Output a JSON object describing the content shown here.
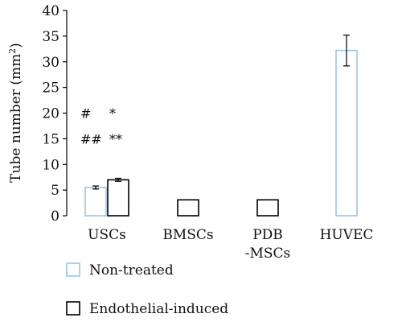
{
  "chart_data": {
    "type": "bar",
    "ylabel": "Tube number (mm",
    "ylabel_sup": "2",
    "ylabel_end": ")",
    "ylim": [
      0,
      40
    ],
    "yticks": [
      0,
      5,
      10,
      15,
      20,
      25,
      30,
      35,
      40
    ],
    "grid": false,
    "legend_position": "bottom-left",
    "categories": [
      {
        "lines": [
          "USCs"
        ]
      },
      {
        "lines": [
          "BMSCs"
        ]
      },
      {
        "lines": [
          "PDB",
          "-MSCs"
        ]
      },
      {
        "lines": [
          "HUVEC"
        ]
      }
    ],
    "series": [
      {
        "name": "Non-treated",
        "color": "#9dc3e6",
        "values": [
          5.5,
          null,
          null,
          32.2
        ],
        "errors": [
          0.3,
          null,
          null,
          3.0
        ]
      },
      {
        "name": "Endothelial-induced",
        "color": "#000000",
        "values": [
          7.0,
          3.1,
          3.1,
          null
        ],
        "errors": [
          0.3,
          null,
          null,
          null
        ]
      }
    ],
    "annotations": [
      {
        "text": "#",
        "x": 0,
        "y": 20
      },
      {
        "text": "*",
        "x": 1,
        "y": 20
      },
      {
        "text": "##",
        "x": 0,
        "y": 15
      },
      {
        "text": "**",
        "x": 1,
        "y": 15
      }
    ]
  }
}
